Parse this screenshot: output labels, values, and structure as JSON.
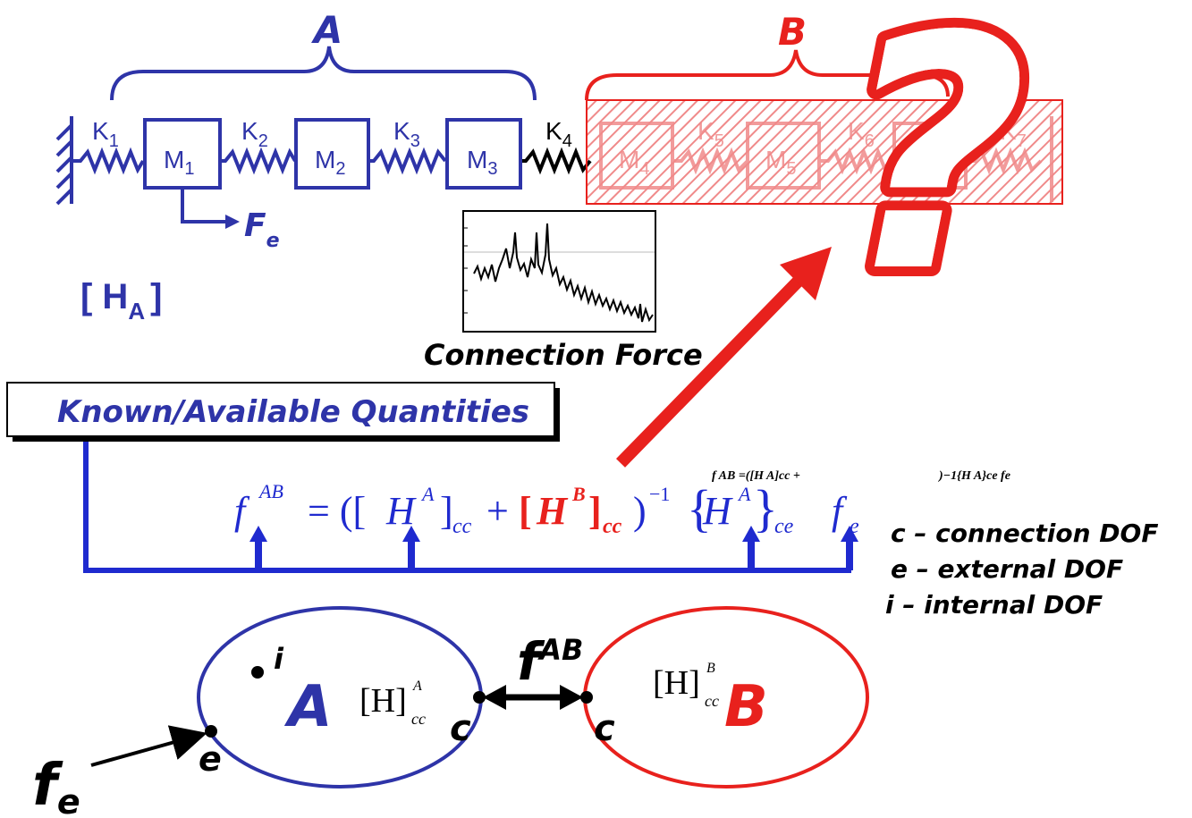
{
  "colors": {
    "blue": "#2e34a8",
    "red": "#e8211d",
    "black": "#000000",
    "pink": "#f08a8a"
  },
  "top": {
    "brace_A": "A",
    "brace_B": "B",
    "springs": [
      {
        "k": "K",
        "sub": "1"
      },
      {
        "k": "K",
        "sub": "2"
      },
      {
        "k": "K",
        "sub": "3"
      },
      {
        "k": "K",
        "sub": "4"
      },
      {
        "k": "K",
        "sub": "5"
      },
      {
        "k": "K",
        "sub": "6"
      },
      {
        "k": "K",
        "sub": "7"
      }
    ],
    "masses": [
      {
        "m": "M",
        "sub": "1"
      },
      {
        "m": "M",
        "sub": "2"
      },
      {
        "m": "M",
        "sub": "3"
      },
      {
        "m": "M",
        "sub": "4"
      },
      {
        "m": "M",
        "sub": "5"
      },
      {
        "m": "M",
        "sub": "6"
      }
    ],
    "force_F": "F",
    "force_sub": "e",
    "question_mark": "?",
    "HA_open": "[ H",
    "HA_sub": "A",
    "HA_close": "]"
  },
  "inset": {
    "caption": "Connection Force"
  },
  "known_box": "Known/Available Quantities",
  "equation": {
    "f": "f",
    "f_sup": "AB",
    "eq_open": "= ([",
    "H1": "H",
    "H1_sup": "A",
    "H1_close": "]",
    "H1_sub": "cc",
    "plus": "+",
    "H2_open": "[",
    "H2": "H",
    "H2_sup": "B",
    "H2_close": "]",
    "H2_sub": "cc",
    "inv": ")",
    "inv_sup": "−1",
    "brace": "{",
    "H3": "H",
    "H3_sup": "A",
    "brace_close": "}",
    "H3_sub": "ce",
    "fe": "f",
    "fe_sub": "e"
  },
  "garbled": {
    "left": "f AB =([H A]cc +",
    "right": ")−1{H A}ce fe"
  },
  "legend": [
    "c – connection DOF",
    "e – external DOF",
    "i – internal DOF"
  ],
  "bottom": {
    "i_label": "i",
    "A_label": "A",
    "B_label": "B",
    "HccA": "[H]",
    "HccA_sup": "A",
    "HccA_sub": "cc",
    "HccB": "[H]",
    "HccB_sup": "B",
    "HccB_sub": "cc",
    "c_left": "c",
    "c_right": "c",
    "e_label": "e",
    "fAB": "f",
    "fAB_sup": "AB",
    "fe": "f",
    "fe_sub": "e"
  }
}
